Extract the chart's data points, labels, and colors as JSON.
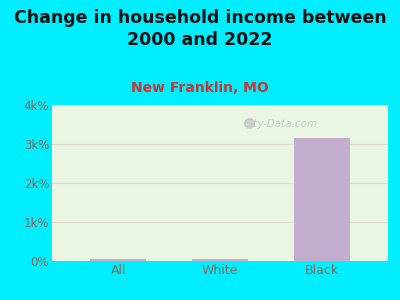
{
  "title": "Change in household income between\n2000 and 2022",
  "subtitle": "New Franklin, MO",
  "categories": [
    "All",
    "White",
    "Black"
  ],
  "values": [
    50,
    50,
    3150
  ],
  "bar_color": "#c4aed0",
  "background_outer": "#00eeff",
  "background_plot": "#eaf5e2",
  "title_fontsize": 12.5,
  "subtitle_fontsize": 10,
  "subtitle_color": "#cc3333",
  "tick_label_color": "#886655",
  "ylim": [
    0,
    4000
  ],
  "yticks": [
    0,
    1000,
    2000,
    3000,
    4000
  ],
  "ytick_labels": [
    "0%",
    "1k%",
    "2k%",
    "3k%",
    "4k%"
  ],
  "watermark": "City-Data.com",
  "grid_color": "#ddddcc"
}
